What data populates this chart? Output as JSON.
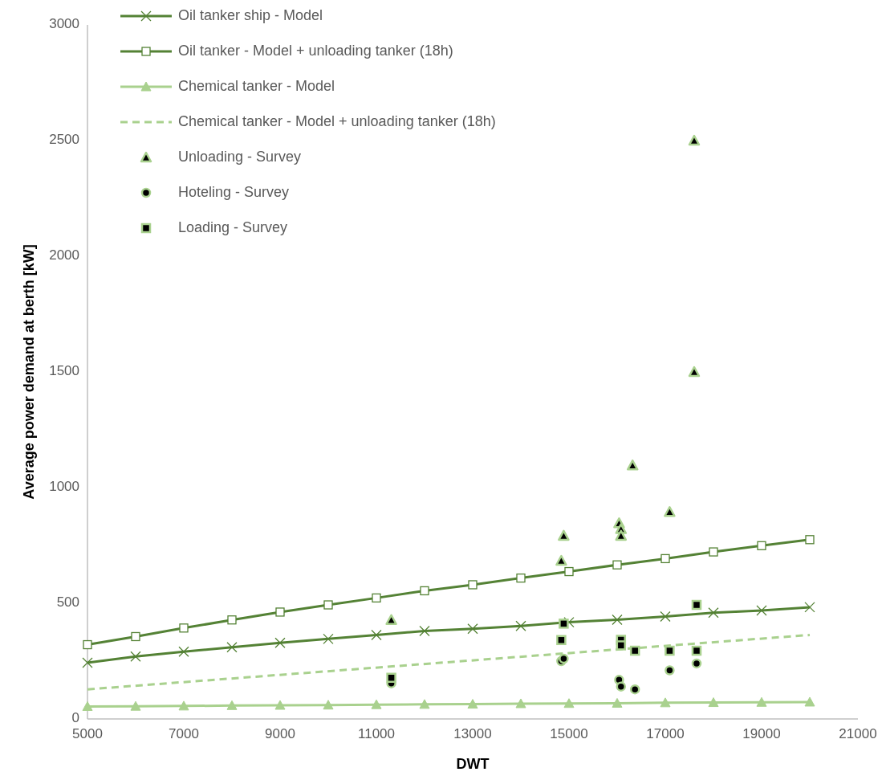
{
  "chart_data": {
    "type": "line",
    "xlabel": "DWT",
    "ylabel": "Average power demand at berth [kW]",
    "xlim": [
      5000,
      21000
    ],
    "xticks": [
      5000,
      7000,
      9000,
      11000,
      13000,
      15000,
      17000,
      19000,
      21000
    ],
    "ylim": [
      0,
      3000
    ],
    "yticks": [
      0,
      500,
      1000,
      1500,
      2000,
      2500,
      3000
    ],
    "grid": false,
    "legend": "top left",
    "series": [
      {
        "name": "Oil tanker ship - Model",
        "color": "#548235",
        "marker": "cross",
        "line_style": "solid",
        "x": [
          5000,
          6000,
          7000,
          8000,
          9000,
          10000,
          11000,
          12000,
          13000,
          14000,
          15000,
          16000,
          17000,
          18000,
          19000,
          20000
        ],
        "values": [
          243,
          270,
          291,
          310,
          329,
          346,
          363,
          380,
          390,
          402,
          418,
          429,
          443,
          459,
          469,
          483
        ]
      },
      {
        "name": "Oil tanker - Model + unloading tanker (18h)",
        "color": "#548235",
        "marker": "square",
        "line_style": "solid",
        "x": [
          5000,
          6000,
          7000,
          8000,
          9000,
          10000,
          11000,
          12000,
          13000,
          14000,
          15000,
          16000,
          17000,
          18000,
          19000,
          20000
        ],
        "values": [
          321,
          356,
          393,
          428,
          462,
          493,
          523,
          554,
          580,
          609,
          637,
          666,
          693,
          722,
          749,
          775
        ]
      },
      {
        "name": "Chemical tanker - Model",
        "color": "#a9d18e",
        "marker": "triangle",
        "line_style": "solid",
        "x": [
          5000,
          6000,
          7000,
          8000,
          9000,
          10000,
          11000,
          12000,
          13000,
          14000,
          15000,
          16000,
          17000,
          18000,
          19000,
          20000
        ],
        "values": [
          54,
          55,
          56,
          58,
          59,
          60,
          62,
          63,
          64,
          66,
          67,
          68,
          70,
          71,
          72,
          73
        ]
      },
      {
        "name": "Chemical tanker - Model + unloading tanker (18h)",
        "color": "#a9d18e",
        "marker": "none",
        "line_style": "dashed",
        "x": [
          5000,
          20000
        ],
        "values": [
          128,
          363
        ]
      },
      {
        "name": "Unloading - Survey",
        "type": "scatter",
        "color": "#a9d18e",
        "marker": "triangle",
        "x": [
          11310,
          14840,
          14890,
          16040,
          16080,
          16080,
          16320,
          17090,
          17600,
          17600
        ],
        "values": [
          428,
          684,
          792,
          846,
          821,
          792,
          1096,
          895,
          1500,
          2500
        ]
      },
      {
        "name": "Hoteling - Survey",
        "type": "scatter",
        "color": "#a9d18e",
        "marker": "circle",
        "x": [
          11310,
          14840,
          14890,
          16040,
          16080,
          16370,
          17090,
          17650
        ],
        "values": [
          154,
          250,
          260,
          169,
          140,
          128,
          210,
          240
        ]
      },
      {
        "name": "Loading - Survey",
        "type": "scatter",
        "color": "#a9d18e",
        "marker": "square",
        "x": [
          11310,
          14840,
          14890,
          16080,
          16080,
          16370,
          17090,
          17650,
          17650
        ],
        "values": [
          178,
          341,
          412,
          342,
          318,
          295,
          295,
          295,
          493
        ]
      }
    ]
  }
}
